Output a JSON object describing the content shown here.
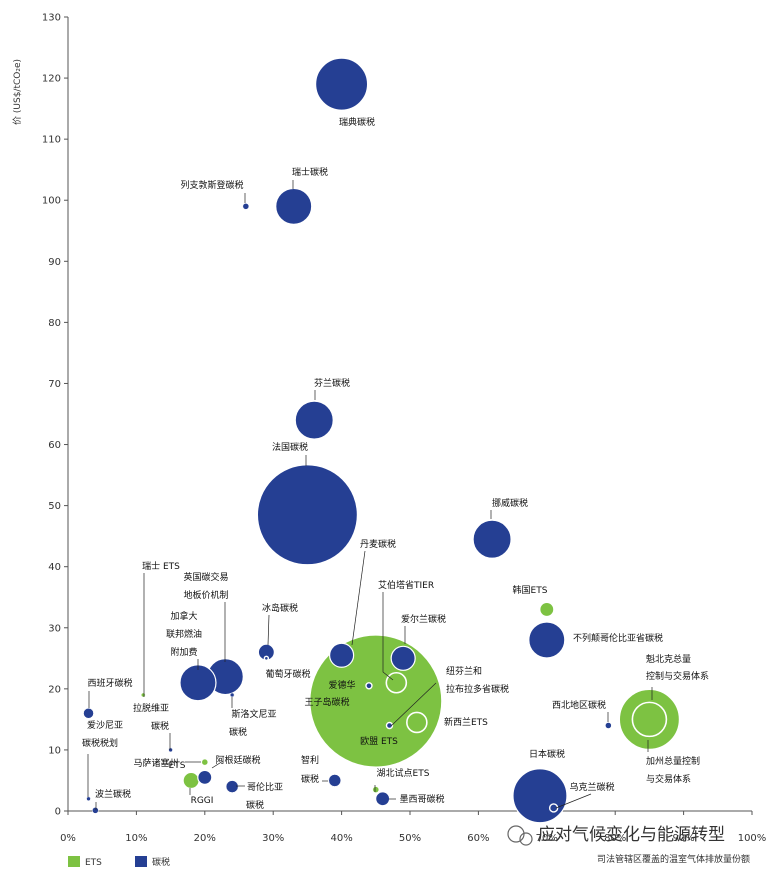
{
  "chart_data": {
    "type": "scatter",
    "bubble": true,
    "ylabel": "价 (US$/tCO₂e)",
    "xlabel": "司法管辖区覆盖的温室气体排放量份额",
    "xlim": [
      0,
      100
    ],
    "ylim": [
      0,
      130
    ],
    "x_ticks": [
      "0%",
      "10%",
      "20%",
      "30%",
      "40%",
      "50%",
      "60%",
      "70%",
      "80%",
      "90%",
      "100%"
    ],
    "y_ticks": [
      0,
      10,
      20,
      30,
      40,
      50,
      60,
      70,
      80,
      90,
      100,
      110,
      120,
      130
    ],
    "colors": {
      "ETS": "#7dc242",
      "碳税": "#253f93"
    },
    "legend": {
      "position": "bottom-left",
      "items": [
        {
          "name": "ETS",
          "type": "ETS"
        },
        {
          "name": "碳税",
          "type": "碳税"
        }
      ]
    },
    "watermark": "应对气候变化与能源转型",
    "points": [
      {
        "label": "瑞典碳税",
        "type": "碳税",
        "x": 40,
        "y": 119,
        "size": 26
      },
      {
        "label": "瑞士碳税",
        "type": "碳税",
        "x": 33,
        "y": 99,
        "size": 18
      },
      {
        "label": "列支敦斯登碳税",
        "type": "碳税",
        "x": 26,
        "y": 99,
        "size": 3
      },
      {
        "label": "芬兰碳税",
        "type": "碳税",
        "x": 36,
        "y": 64,
        "size": 19
      },
      {
        "label": "法国碳税",
        "type": "碳税",
        "x": 35,
        "y": 48.5,
        "size": 50
      },
      {
        "label": "挪威碳税",
        "type": "碳税",
        "x": 62,
        "y": 44.5,
        "size": 19
      },
      {
        "label": "丹麦碳税",
        "type": "碳税",
        "x": 40,
        "y": 25.5,
        "size": 12
      },
      {
        "label": "欧盟 ETS",
        "type": "ETS",
        "x": 45,
        "y": 18,
        "size": 66
      },
      {
        "label": "艾伯塔省TIER",
        "type": "ETS",
        "x": 48,
        "y": 21,
        "size": 10
      },
      {
        "label": "爱尔兰碳税",
        "type": "碳税",
        "x": 49,
        "y": 25,
        "size": 12
      },
      {
        "label": "爱德华王子岛碳税",
        "type": "碳税",
        "x": 44,
        "y": 20.5,
        "size": 3
      },
      {
        "label": "纽芬兰和拉布拉多省碳税",
        "type": "碳税",
        "x": 47,
        "y": 14,
        "size": 3
      },
      {
        "label": "新西兰ETS",
        "type": "ETS",
        "x": 51,
        "y": 14.5,
        "size": 10
      },
      {
        "label": "韩国ETS",
        "type": "ETS",
        "x": 70,
        "y": 33,
        "size": 7
      },
      {
        "label": "不列颠哥伦比亚省碳税",
        "type": "碳税",
        "x": 70,
        "y": 28,
        "size": 18
      },
      {
        "label": "魁北克总量控制与交易体系",
        "type": "ETS",
        "x": 85,
        "y": 15,
        "size": 30
      },
      {
        "label": "加州总量控制与交易体系",
        "type": "ETS",
        "x": 85,
        "y": 15,
        "size": 17
      },
      {
        "label": "西北地区碳税",
        "type": "碳税",
        "x": 79,
        "y": 14,
        "size": 3
      },
      {
        "label": "日本碳税",
        "type": "碳税",
        "x": 69,
        "y": 2.5,
        "size": 27
      },
      {
        "label": "乌克兰碳税",
        "type": "碳税",
        "x": 71,
        "y": 0.5,
        "size": 4
      },
      {
        "label": "瑞士 ETS",
        "type": "ETS",
        "x": 11,
        "y": 19,
        "size": 2
      },
      {
        "label": "英国碳交易地板价机制",
        "type": "碳税",
        "x": 23,
        "y": 22,
        "size": 18
      },
      {
        "label": "加拿大联邦燃油附加费",
        "type": "碳税",
        "x": 19,
        "y": 21,
        "size": 18
      },
      {
        "label": "冰岛碳税",
        "type": "碳税",
        "x": 29,
        "y": 26,
        "size": 8
      },
      {
        "label": "葡萄牙碳税",
        "type": "碳税",
        "x": 29,
        "y": 25,
        "size": 2
      },
      {
        "label": "斯洛文尼亚碳税",
        "type": "碳税",
        "x": 24,
        "y": 19,
        "size": 2
      },
      {
        "label": "西班牙碳税",
        "type": "碳税",
        "x": 3,
        "y": 16,
        "size": 5
      },
      {
        "label": "拉脱维亚碳税",
        "type": "碳税",
        "x": 15,
        "y": 10,
        "size": 2
      },
      {
        "label": "马萨诸塞州 ETS",
        "type": "ETS",
        "x": 20,
        "y": 8,
        "size": 3
      },
      {
        "label": "RGGI",
        "type": "ETS",
        "x": 18,
        "y": 5,
        "size": 8
      },
      {
        "label": "阿根廷碳税",
        "type": "碳税",
        "x": 20,
        "y": 5.5,
        "size": 7
      },
      {
        "label": "哥伦比亚碳税",
        "type": "碳税",
        "x": 24,
        "y": 4,
        "size": 6
      },
      {
        "label": "爱沙尼亚碳税税划",
        "type": "碳税",
        "x": 3,
        "y": 2,
        "size": 2
      },
      {
        "label": "波兰碳税",
        "type": "碳税",
        "x": 4,
        "y": 0.1,
        "size": 3
      },
      {
        "label": "智利碳税",
        "type": "碳税",
        "x": 39,
        "y": 5,
        "size": 6
      },
      {
        "label": "湖北试点ETS",
        "type": "ETS",
        "x": 45,
        "y": 3.5,
        "size": 3
      },
      {
        "label": "墨西哥碳税",
        "type": "碳税",
        "x": 46,
        "y": 2,
        "size": 7
      }
    ]
  }
}
